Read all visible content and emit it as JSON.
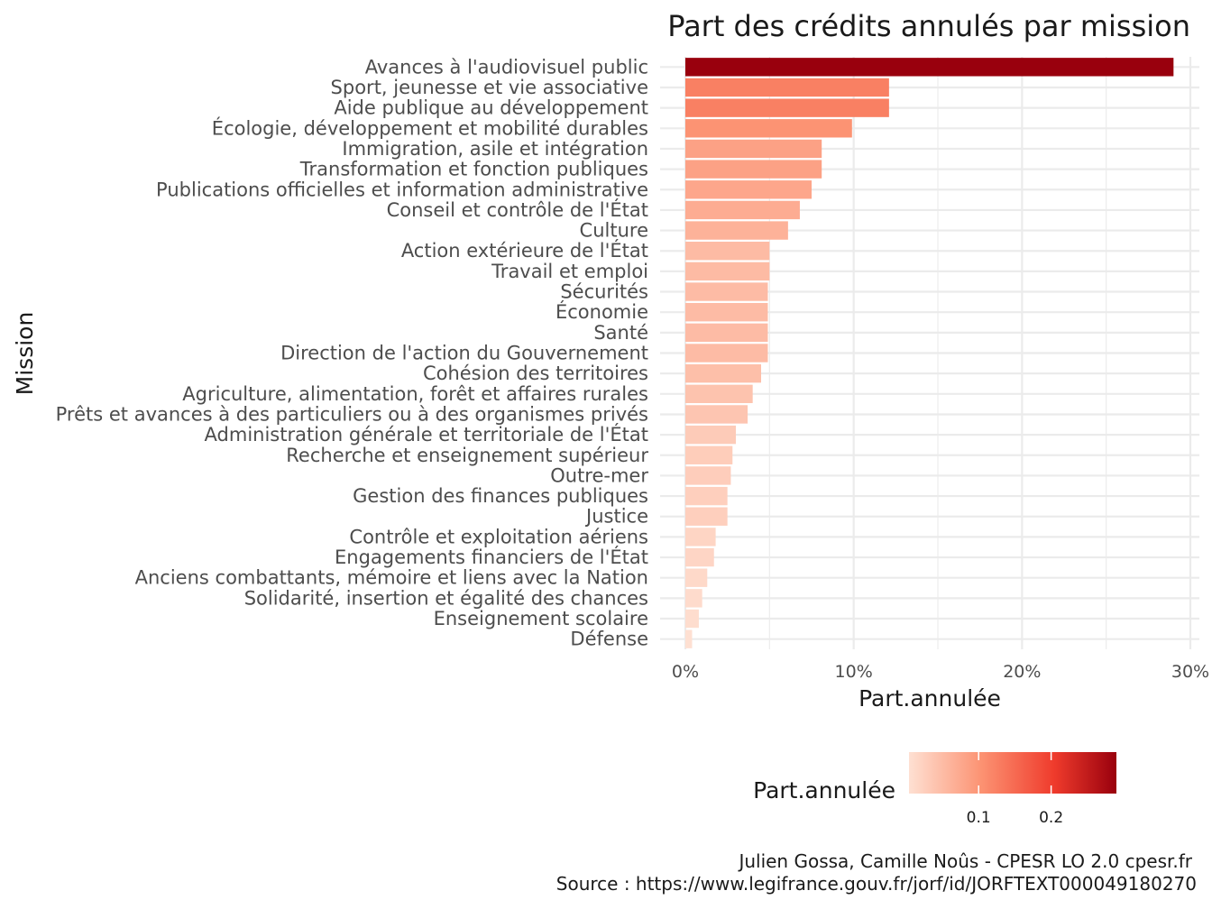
{
  "chart_data": {
    "type": "bar",
    "orientation": "horizontal",
    "title": "Part des crédits annulés par mission",
    "xlabel": "Part.annulée",
    "ylabel": "Mission",
    "xlim": [
      0,
      0.3
    ],
    "x_ticks": [
      {
        "value": 0,
        "label": "0%"
      },
      {
        "value": 0.1,
        "label": "10%"
      },
      {
        "value": 0.2,
        "label": "20%"
      },
      {
        "value": 0.3,
        "label": "30%"
      }
    ],
    "grid": true,
    "color_scale": {
      "title": "Part.annulée",
      "low": "#fee0d2",
      "mid": "#fc8d6a",
      "mid2": "#ef3b2c",
      "high": "#99000d",
      "ticks": [
        {
          "value": 0.1,
          "label": "0.1"
        },
        {
          "value": 0.2,
          "label": "0.2"
        }
      ],
      "range": [
        0.004,
        0.29
      ],
      "legend_position": "bottom"
    },
    "categories": [
      "Avances à l'audiovisuel public",
      "Sport, jeunesse et vie associative",
      "Aide publique au développement",
      "Écologie, développement et mobilité durables",
      "Immigration, asile et intégration",
      "Transformation et fonction publiques",
      "Publications officielles et information administrative",
      "Conseil et contrôle de l'État",
      "Culture",
      "Action extérieure de l'État",
      "Travail et emploi",
      "Sécurités",
      "Économie",
      "Santé",
      "Direction de l'action du Gouvernement",
      "Cohésion des territoires",
      "Agriculture, alimentation, forêt et affaires rurales",
      "Prêts et avances à des particuliers ou à des organismes privés",
      "Administration générale et territoriale de l'État",
      "Recherche et enseignement supérieur",
      "Outre-mer",
      "Gestion des finances publiques",
      "Justice",
      "Contrôle et exploitation aériens",
      "Engagements financiers de l'État",
      "Anciens combattants, mémoire et liens avec la Nation",
      "Solidarité, insertion et égalité des chances",
      "Enseignement scolaire",
      "Défense"
    ],
    "values": [
      0.29,
      0.121,
      0.121,
      0.099,
      0.081,
      0.081,
      0.075,
      0.068,
      0.061,
      0.05,
      0.05,
      0.049,
      0.049,
      0.049,
      0.049,
      0.045,
      0.04,
      0.037,
      0.03,
      0.028,
      0.027,
      0.025,
      0.025,
      0.018,
      0.017,
      0.013,
      0.01,
      0.008,
      0.004
    ],
    "caption": [
      "Julien Gossa, Camille Noûs - CPESR LO 2.0 cpesr.fr",
      "Source : https://www.legifrance.gouv.fr/jorf/id/JORFTEXT000049180270"
    ]
  }
}
